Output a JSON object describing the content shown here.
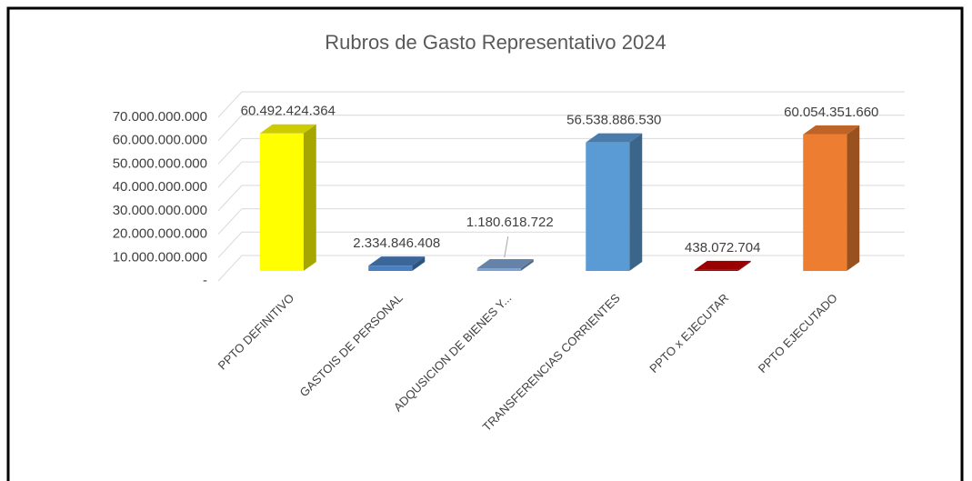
{
  "chart_data": {
    "type": "bar3d",
    "title": "Rubros de Gasto Representativo 2024",
    "categories": [
      "PPTO DEFINITIVO",
      "GASTOIS DE PERSONAL",
      "ADQUSICION DE BIENES Y...",
      "TRANSFERENCIAS CORRIENTES",
      "PPTO x EJECUTAR",
      "PPTO EJECUTADO"
    ],
    "values": [
      60492424364,
      2334846408,
      1180618722,
      56538886530,
      438072704,
      60054351660
    ],
    "value_labels": [
      "60.492.424.364",
      "2.334.846.408",
      "1.180.618.722",
      "56.538.886.530",
      "438.072.704",
      "60.054.351.660"
    ],
    "colors": [
      "#ffff00",
      "#4a7fc1",
      "#7ea3d3",
      "#5b9bd5",
      "#c00000",
      "#ed7d31"
    ],
    "ylim": [
      0,
      70000000000
    ],
    "yticks": [
      {
        "value": 0,
        "label": "-"
      },
      {
        "value": 10000000000,
        "label": "10.000.000.000"
      },
      {
        "value": 20000000000,
        "label": "20.000.000.000"
      },
      {
        "value": 30000000000,
        "label": "30.000.000.000"
      },
      {
        "value": 40000000000,
        "label": "40.000.000.000"
      },
      {
        "value": 50000000000,
        "label": "50.000.000.000"
      },
      {
        "value": 60000000000,
        "label": "60.000.000.000"
      },
      {
        "value": 70000000000,
        "label": "70.000.000.000"
      }
    ],
    "grid": true
  }
}
